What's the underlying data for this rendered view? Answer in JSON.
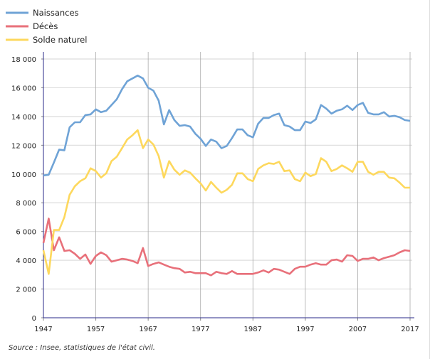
{
  "chart_data": {
    "type": "line",
    "title": "",
    "xlabel": "",
    "ylabel": "",
    "xlim": [
      1947,
      2017
    ],
    "ylim": [
      0,
      18000
    ],
    "grid": true,
    "legend_position": "top-left",
    "x_ticks": [
      "1947",
      "1957",
      "1967",
      "1977",
      "1987",
      "1997",
      "2007",
      "2017"
    ],
    "y_ticks": [
      "0",
      "2 000",
      "4 000",
      "6 000",
      "8 000",
      "10 000",
      "12 000",
      "14 000",
      "16 000",
      "18 000"
    ],
    "x_start": 1947,
    "series": [
      {
        "name": "Naissances",
        "color": "#6fa3d6",
        "values": [
          9900,
          9950,
          10800,
          11700,
          11650,
          13250,
          13600,
          13600,
          14100,
          14150,
          14500,
          14300,
          14400,
          14800,
          15200,
          15900,
          16450,
          16650,
          16850,
          16650,
          16000,
          15800,
          15100,
          13450,
          14450,
          13750,
          13350,
          13400,
          13300,
          12800,
          12450,
          11950,
          12400,
          12250,
          11800,
          11950,
          12500,
          13100,
          13100,
          12700,
          12550,
          13500,
          13900,
          13900,
          14100,
          14200,
          13400,
          13300,
          13050,
          13050,
          13650,
          13550,
          13800,
          14800,
          14550,
          14200,
          14400,
          14500,
          14750,
          14450,
          14800,
          14950,
          14250,
          14150,
          14150,
          14300,
          14000,
          14050,
          13950,
          13750,
          13700
        ]
      },
      {
        "name": "Décès",
        "color": "#e8707a",
        "values": [
          5200,
          6900,
          4700,
          5600,
          4650,
          4700,
          4450,
          4100,
          4400,
          3750,
          4300,
          4550,
          4350,
          3900,
          4000,
          4100,
          4050,
          3950,
          3800,
          4850,
          3600,
          3750,
          3850,
          3700,
          3550,
          3450,
          3400,
          3150,
          3200,
          3100,
          3100,
          3100,
          2950,
          3200,
          3100,
          3050,
          3250,
          3050,
          3050,
          3050,
          3050,
          3150,
          3300,
          3150,
          3400,
          3350,
          3200,
          3050,
          3400,
          3550,
          3550,
          3700,
          3800,
          3700,
          3700,
          4000,
          4050,
          3900,
          4350,
          4300,
          3950,
          4100,
          4100,
          4200,
          4000,
          4150,
          4250,
          4350,
          4550,
          4700,
          4650
        ]
      },
      {
        "name": "Solde naturel",
        "color": "#fdd85d",
        "values": [
          4700,
          3050,
          6100,
          6100,
          7000,
          8550,
          9150,
          9500,
          9700,
          10400,
          10200,
          9750,
          10050,
          10900,
          11200,
          11800,
          12400,
          12700,
          13050,
          11800,
          12400,
          12050,
          11250,
          9750,
          10900,
          10300,
          9950,
          10250,
          10100,
          9700,
          9350,
          8850,
          9450,
          9050,
          8700,
          8900,
          9250,
          10050,
          10050,
          9650,
          9500,
          10350,
          10600,
          10750,
          10700,
          10850,
          10200,
          10250,
          9650,
          9500,
          10100,
          9850,
          10000,
          11100,
          10850,
          10200,
          10350,
          10600,
          10400,
          10150,
          10850,
          10850,
          10150,
          9950,
          10150,
          10150,
          9750,
          9700,
          9400,
          9050,
          9050
        ]
      }
    ]
  },
  "source": "Source : Insee, statistiques de l'état civil."
}
